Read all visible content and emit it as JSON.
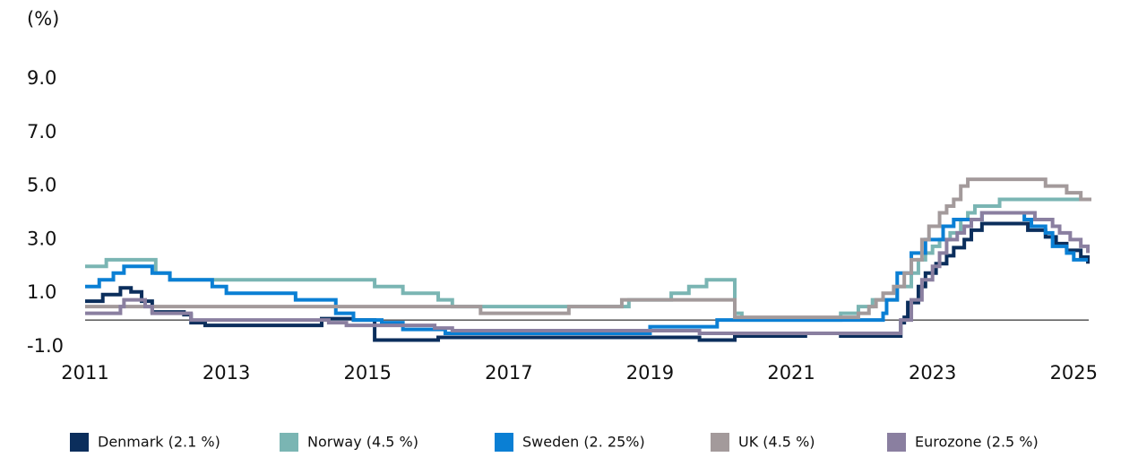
{
  "chart_data": {
    "type": "line",
    "step": true,
    "y_label": "(%)",
    "xlim": [
      2011,
      2025.25
    ],
    "xticks": [
      2011,
      2013,
      2015,
      2017,
      2019,
      2021,
      2023,
      2025
    ],
    "ylim": [
      -1,
      9
    ],
    "yticks": [
      {
        "value": -1,
        "label": "-1.0"
      },
      {
        "value": 1,
        "label": "1.0"
      },
      {
        "value": 3,
        "label": "3.0"
      },
      {
        "value": 5,
        "label": "5.0"
      },
      {
        "value": 7,
        "label": "7.0"
      },
      {
        "value": 9,
        "label": "9.0"
      }
    ],
    "series": [
      {
        "name": "Denmark (2.1 %)",
        "color": "#0b2e5c",
        "x": [
          2011,
          2011.25,
          2011.5,
          2011.65,
          2011.8,
          2011.95,
          2012.4,
          2012.5,
          2012.7,
          2014.35,
          2014.8,
          2015.1,
          2016.0,
          2019.7,
          2020.2,
          2021.2,
          2021.7,
          2022.55,
          2022.6,
          2022.65,
          2022.8,
          2022.9,
          2023.05,
          2023.2,
          2023.3,
          2023.45,
          2023.55,
          2023.7,
          2024.35,
          2024.6,
          2024.75,
          2024.9,
          2025.1,
          2025.2
        ],
        "values": [
          0.7,
          0.95,
          1.2,
          1.05,
          0.7,
          0.3,
          0.2,
          -0.1,
          -0.2,
          0.05,
          0.0,
          -0.75,
          -0.65,
          -0.75,
          -0.6,
          -0.5,
          -0.6,
          -0.1,
          0.1,
          0.65,
          1.25,
          1.75,
          2.1,
          2.4,
          2.7,
          3.0,
          3.35,
          3.6,
          3.35,
          3.1,
          2.85,
          2.6,
          2.35,
          2.1
        ]
      },
      {
        "name": "Norway (4.5 %)",
        "color": "#7ab5b3",
        "x": [
          2011,
          2011.3,
          2012.0,
          2012.2,
          2015.1,
          2015.5,
          2016.0,
          2016.2,
          2018.7,
          2019.3,
          2019.55,
          2019.8,
          2020.2,
          2020.3,
          2021.7,
          2021.95,
          2022.15,
          2022.5,
          2022.7,
          2022.8,
          2022.9,
          2023.0,
          2023.1,
          2023.25,
          2023.4,
          2023.5,
          2023.6,
          2023.95,
          2025.25
        ],
        "values": [
          2.0,
          2.25,
          1.75,
          1.5,
          1.25,
          1.0,
          0.75,
          0.5,
          0.75,
          1.0,
          1.25,
          1.5,
          0.25,
          0.0,
          0.25,
          0.5,
          0.75,
          1.25,
          1.75,
          2.25,
          2.5,
          2.75,
          3.0,
          3.25,
          3.75,
          4.0,
          4.25,
          4.5,
          4.5
        ]
      },
      {
        "name": "Sweden (2. 25%)",
        "color": "#0a7fd4",
        "x": [
          2011,
          2011.2,
          2011.4,
          2011.55,
          2011.95,
          2012.2,
          2012.8,
          2013.0,
          2013.98,
          2014.55,
          2014.8,
          2015.2,
          2015.5,
          2016.1,
          2019.0,
          2019.95,
          2022.3,
          2022.35,
          2022.5,
          2022.7,
          2022.9,
          2023.15,
          2023.3,
          2023.7,
          2024.3,
          2024.4,
          2024.6,
          2024.7,
          2024.9,
          2025.0,
          2025.1,
          2025.2
        ],
        "values": [
          1.25,
          1.5,
          1.75,
          2.0,
          1.75,
          1.5,
          1.25,
          1.0,
          0.75,
          0.25,
          0.0,
          -0.1,
          -0.35,
          -0.5,
          -0.25,
          0.0,
          0.25,
          0.75,
          1.75,
          2.5,
          3.0,
          3.5,
          3.75,
          4.0,
          3.75,
          3.5,
          3.25,
          2.75,
          2.5,
          2.25,
          2.25,
          2.25
        ]
      },
      {
        "name": "UK (4.5 %)",
        "color": "#a39a9b",
        "x": [
          2011,
          2016.6,
          2017.85,
          2018.6,
          2020.2,
          2021.95,
          2022.1,
          2022.2,
          2022.3,
          2022.45,
          2022.6,
          2022.7,
          2022.85,
          2022.95,
          2023.1,
          2023.2,
          2023.3,
          2023.4,
          2023.5,
          2023.65,
          2024.6,
          2024.9,
          2025.1,
          2025.25
        ],
        "values": [
          0.5,
          0.25,
          0.5,
          0.75,
          0.1,
          0.25,
          0.5,
          0.75,
          1.0,
          1.25,
          1.75,
          2.25,
          3.0,
          3.5,
          4.0,
          4.25,
          4.5,
          5.0,
          5.25,
          5.25,
          5.0,
          4.75,
          4.5,
          4.5
        ]
      },
      {
        "name": "Eurozone (2.5 %)",
        "color": "#8a7fa0",
        "x": [
          2011,
          2011.5,
          2011.55,
          2011.85,
          2011.95,
          2012.5,
          2014.45,
          2014.7,
          2015.95,
          2016.2,
          2019.7,
          2022.55,
          2022.7,
          2022.85,
          2023.0,
          2023.1,
          2023.2,
          2023.35,
          2023.45,
          2023.55,
          2023.7,
          2024.45,
          2024.7,
          2024.8,
          2024.95,
          2025.1,
          2025.2
        ],
        "values": [
          0.25,
          0.5,
          0.75,
          0.5,
          0.25,
          0.0,
          -0.1,
          -0.2,
          -0.3,
          -0.4,
          -0.5,
          0.0,
          0.75,
          1.5,
          2.0,
          2.5,
          3.0,
          3.25,
          3.5,
          3.75,
          4.0,
          3.75,
          3.5,
          3.25,
          3.0,
          2.75,
          2.5
        ]
      }
    ]
  }
}
